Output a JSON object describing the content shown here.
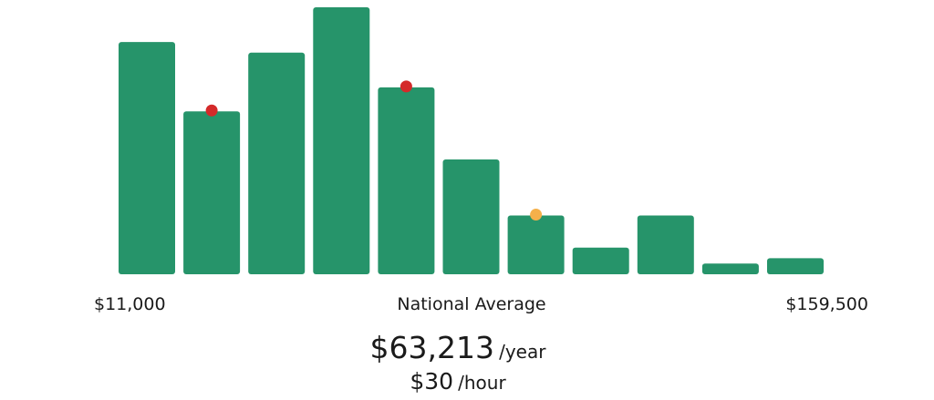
{
  "chart_data": {
    "type": "bar",
    "title": "",
    "xlabel": "",
    "ylabel": "",
    "values": [
      87,
      61,
      83,
      100,
      70,
      43,
      22,
      10,
      22,
      4,
      6
    ],
    "value_unit": "relative frequency (% of tallest bar)",
    "ylim": [
      0,
      100
    ],
    "grid": false,
    "x_range_labels": {
      "min": "$11,000",
      "center": "National Average",
      "max": "$159,500"
    },
    "markers": [
      {
        "bar_index": 1,
        "color": "#d42a2a"
      },
      {
        "bar_index": 4,
        "color": "#d42a2a"
      },
      {
        "bar_index": 6,
        "color": "#f5b04a"
      }
    ]
  },
  "colors": {
    "bar": "#26946a",
    "marker_red": "#d42a2a",
    "marker_orange": "#f5b04a"
  },
  "summary": {
    "annual": "$63,213",
    "annual_unit": "/year",
    "hourly": "$30",
    "hourly_unit": "/hour"
  }
}
